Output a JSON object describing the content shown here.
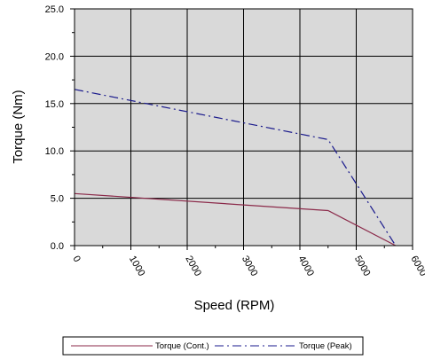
{
  "chart_data": {
    "type": "line",
    "xlabel": "Speed (RPM)",
    "ylabel": "Torque (Nm)",
    "xlim": [
      0,
      6000
    ],
    "ylim": [
      0,
      25
    ],
    "x_ticks": [
      0,
      1000,
      2000,
      3000,
      4000,
      5000,
      6000
    ],
    "y_ticks": [
      0,
      5,
      10,
      15,
      20,
      25
    ],
    "y_tick_labels": [
      "0.0",
      "5.0",
      "10.0",
      "15.0",
      "20.0",
      "25.0"
    ],
    "x_tick_labels": [
      "0",
      "1000",
      "2000",
      "3000",
      "4000",
      "5000",
      "6000"
    ],
    "grid": true,
    "plot_background": "#d9d9d9",
    "legend_position": "bottom",
    "series": [
      {
        "name": "Torque (Cont.)",
        "color": "#8b2a4a",
        "style": "solid",
        "x": [
          0,
          4500,
          5700
        ],
        "y": [
          5.5,
          3.7,
          0.0
        ]
      },
      {
        "name": "Torque (Peak)",
        "color": "#1a1a8c",
        "style": "dash-dot",
        "x": [
          0,
          4500,
          5700
        ],
        "y": [
          16.5,
          11.2,
          0.0
        ]
      }
    ]
  }
}
